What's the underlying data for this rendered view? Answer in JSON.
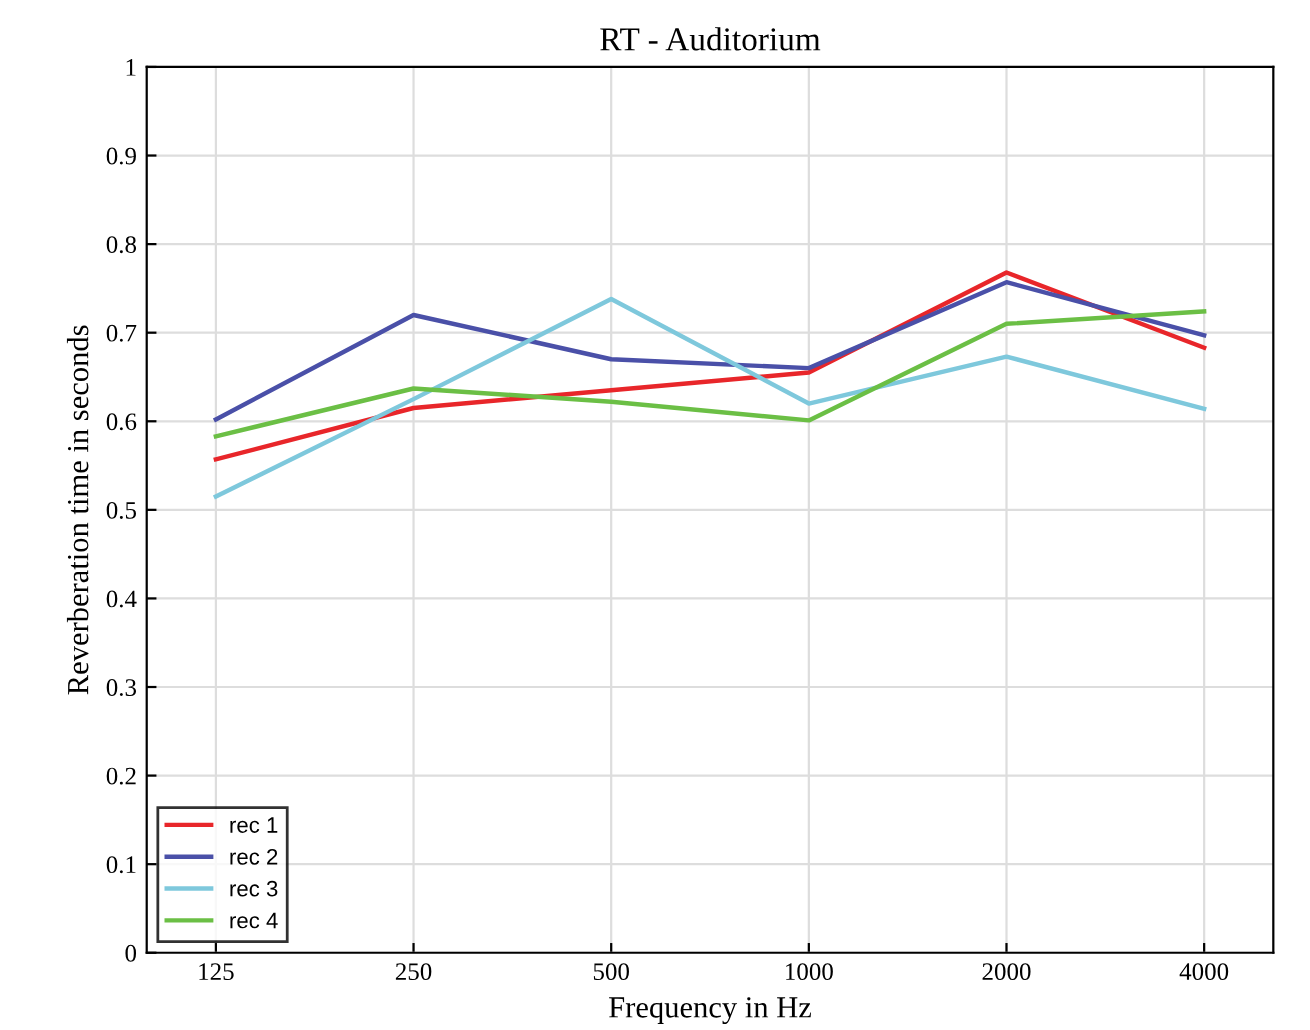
{
  "chart_data": {
    "type": "line",
    "title": "RT - Auditorium",
    "xlabel": "Frequency in Hz",
    "ylabel": "Reverberation time in seconds",
    "categories": [
      "125",
      "250",
      "500",
      "1000",
      "2000",
      "4000"
    ],
    "series": [
      {
        "name": "rec 1",
        "color": "#e8262a",
        "values": [
          0.557,
          0.615,
          0.635,
          0.655,
          0.768,
          0.683
        ]
      },
      {
        "name": "rec 2",
        "color": "#4a50a8",
        "values": [
          0.602,
          0.72,
          0.67,
          0.66,
          0.757,
          0.697
        ]
      },
      {
        "name": "rec 3",
        "color": "#7ec8dc",
        "values": [
          0.515,
          0.625,
          0.738,
          0.62,
          0.673,
          0.614
        ]
      },
      {
        "name": "rec 4",
        "color": "#6bbf45",
        "values": [
          0.583,
          0.637,
          0.622,
          0.601,
          0.71,
          0.724
        ]
      }
    ],
    "ylim": [
      0,
      1
    ],
    "yticks": [
      0,
      0.1,
      0.2,
      0.3,
      0.4,
      0.5,
      0.6,
      0.7,
      0.8,
      0.9,
      1
    ],
    "grid": true,
    "legend": "bottom left",
    "marker": "none",
    "line_style": "solid"
  }
}
